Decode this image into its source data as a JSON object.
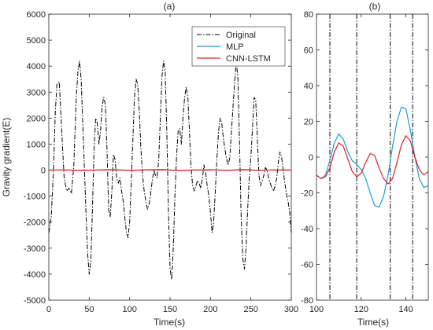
{
  "chart_data": [
    {
      "type": "line",
      "title": "(a)",
      "xlabel": "Time(s)",
      "ylabel": "Gravity gradient(E)",
      "xlim": [
        0,
        300
      ],
      "ylim": [
        -5000,
        6000
      ],
      "xticks": [
        0,
        50,
        100,
        150,
        200,
        250,
        300
      ],
      "yticks": [
        -5000,
        -4000,
        -3000,
        -2000,
        -1000,
        0,
        1000,
        2000,
        3000,
        4000,
        5000,
        6000
      ],
      "grid": false,
      "legend": "top-right",
      "series": [
        {
          "name": "Original",
          "color": "#000000",
          "style": "dashdot",
          "x": [
            0,
            3,
            6,
            8,
            10,
            13,
            16,
            19,
            22,
            25,
            28,
            31,
            34,
            36,
            38,
            40,
            43,
            46,
            48,
            50,
            52,
            54,
            56,
            58,
            60,
            62,
            64,
            66,
            68,
            70,
            72,
            74,
            76,
            78,
            80,
            82,
            84,
            86,
            88,
            90,
            92,
            94,
            96,
            98,
            100,
            102,
            104,
            106,
            108,
            110,
            112,
            114,
            116,
            118,
            120,
            122,
            124,
            126,
            128,
            130,
            132,
            134,
            136,
            138,
            140,
            142,
            144,
            146,
            148,
            150,
            152,
            154,
            156,
            158,
            160,
            162,
            164,
            166,
            168,
            170,
            172,
            174,
            176,
            178,
            180,
            182,
            184,
            186,
            188,
            190,
            192,
            194,
            196,
            198,
            200,
            202,
            204,
            206,
            208,
            210,
            212,
            214,
            216,
            218,
            220,
            222,
            224,
            226,
            228,
            230,
            232,
            234,
            236,
            238,
            240,
            242,
            244,
            246,
            248,
            250,
            252,
            254,
            256,
            258,
            260,
            262,
            264,
            266,
            268,
            270,
            272,
            274,
            276,
            278,
            280,
            282,
            284,
            286,
            288,
            290,
            292,
            294,
            296,
            298,
            300
          ],
          "y": [
            -2400,
            -1800,
            200,
            2200,
            3300,
            3400,
            1500,
            -300,
            -800,
            -700,
            -900,
            200,
            2800,
            3800,
            4200,
            3500,
            1000,
            -1600,
            -3200,
            -4000,
            -3500,
            -1500,
            800,
            2000,
            1800,
            1000,
            1500,
            2500,
            2800,
            2500,
            800,
            -1500,
            -1800,
            -800,
            600,
            400,
            -300,
            -500,
            -300,
            -800,
            -1200,
            -1800,
            -2400,
            -2600,
            -2000,
            -500,
            1200,
            2800,
            3500,
            3300,
            2200,
            800,
            -200,
            -800,
            -1200,
            -1500,
            -1300,
            -900,
            -400,
            0,
            -200,
            -300,
            400,
            2000,
            3600,
            4200,
            3800,
            1500,
            -1500,
            -3800,
            -4200,
            -3000,
            -1000,
            500,
            1500,
            1600,
            1000,
            2000,
            2800,
            3200,
            2800,
            1500,
            100,
            -600,
            -800,
            -600,
            -400,
            -500,
            -700,
            -300,
            200,
            -100,
            -600,
            -1000,
            -1600,
            -2400,
            -2000,
            -800,
            400,
            1500,
            2000,
            1800,
            1200,
            800,
            400,
            200,
            500,
            1500,
            2500,
            3400,
            4200,
            3500,
            1000,
            -1800,
            -3400,
            -3800,
            -3000,
            -1500,
            -300,
            500,
            1600,
            2800,
            2700,
            1200,
            -200,
            -600,
            -400,
            -200,
            100,
            0,
            -300,
            -500,
            -700,
            -800,
            -600,
            -300,
            300,
            700,
            500,
            0,
            -500,
            -900,
            -1200,
            -1600,
            -2400
          ]
        },
        {
          "name": "MLP",
          "color": "#1f9bd7",
          "style": "solid",
          "x": [
            0,
            20,
            40,
            60,
            80,
            100,
            120,
            140,
            160,
            180,
            200,
            220,
            240,
            260,
            280,
            300
          ],
          "y": [
            -5,
            10,
            -15,
            8,
            20,
            -10,
            12,
            30,
            -20,
            5,
            15,
            -12,
            25,
            -8,
            10,
            0
          ]
        },
        {
          "name": "CNN-LSTM",
          "color": "#e02020",
          "style": "solid",
          "x": [
            0,
            20,
            40,
            60,
            80,
            100,
            120,
            140,
            160,
            180,
            200,
            220,
            240,
            260,
            280,
            300
          ],
          "y": [
            0,
            8,
            -10,
            5,
            12,
            -8,
            6,
            12,
            -15,
            4,
            10,
            -8,
            14,
            -6,
            6,
            0
          ]
        }
      ]
    },
    {
      "type": "line",
      "title": "(b)",
      "xlabel": "Time(s)",
      "ylabel": "",
      "xlim": [
        100,
        150
      ],
      "ylim": [
        -80,
        80
      ],
      "xticks": [
        100,
        120,
        140
      ],
      "yticks": [
        -80,
        -60,
        -40,
        -20,
        0,
        20,
        40,
        60,
        80
      ],
      "grid": false,
      "vertical_lines": [
        106,
        118,
        133,
        143
      ],
      "series": [
        {
          "name": "Original",
          "color": "#000000",
          "style": "dashdot",
          "x": [],
          "y": []
        },
        {
          "name": "MLP",
          "color": "#1f9bd7",
          "style": "solid",
          "x": [
            100,
            102,
            104,
            106,
            108,
            110,
            112,
            114,
            116,
            118,
            120,
            122,
            124,
            126,
            128,
            130,
            132,
            134,
            136,
            138,
            140,
            142,
            144,
            146,
            148,
            150
          ],
          "y": [
            -10,
            -12,
            -10,
            -2,
            8,
            13,
            10,
            3,
            -2,
            -4,
            -7,
            -12,
            -20,
            -27,
            -28,
            -22,
            -10,
            6,
            20,
            28,
            27,
            15,
            0,
            -12,
            -17,
            -16
          ]
        },
        {
          "name": "CNN-LSTM",
          "color": "#e02020",
          "style": "solid",
          "x": [
            100,
            102,
            104,
            106,
            108,
            110,
            112,
            114,
            116,
            118,
            120,
            122,
            124,
            126,
            128,
            130,
            132,
            134,
            136,
            138,
            140,
            142,
            144,
            146,
            148,
            150
          ],
          "y": [
            -10,
            -12,
            -11,
            -6,
            3,
            8,
            6,
            -1,
            -8,
            -11,
            -9,
            -3,
            2,
            1,
            -6,
            -12,
            -15,
            -12,
            -3,
            7,
            12,
            9,
            0,
            -7,
            -10,
            -8
          ]
        }
      ]
    }
  ]
}
